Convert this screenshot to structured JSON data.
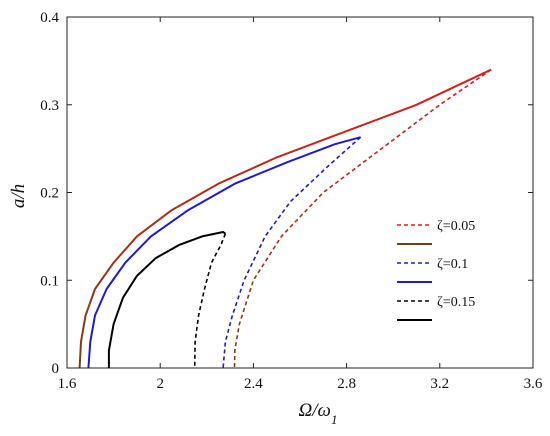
{
  "chart_data": {
    "type": "line",
    "xlabel_main": "Ω/ω",
    "xlabel_sub": "1",
    "ylabel": "a/h",
    "xlim": [
      1.6,
      3.6
    ],
    "ylim": [
      0,
      0.4
    ],
    "xticks": [
      "1.6",
      "2",
      "2.4",
      "2.8",
      "3.2",
      "3.6"
    ],
    "yticks": [
      "0",
      "0.1",
      "0.2",
      "0.3",
      "0.4"
    ],
    "grid": false,
    "legend_position": "right-middle",
    "legend": [
      {
        "label": "ζ=0.05",
        "color": "#e01a1a",
        "dashed": true
      },
      {
        "label": "",
        "color": "#7b3f12",
        "dashed": false
      },
      {
        "label": "ζ=0.1",
        "color": "#1a1adb",
        "dashed": true
      },
      {
        "label": "",
        "color": "#1a1adb",
        "dashed": false
      },
      {
        "label": "ζ=0.15",
        "color": "#000000",
        "dashed": true
      },
      {
        "label": "",
        "color": "#000000",
        "dashed": false
      }
    ],
    "series": [
      {
        "zeta": 0.05,
        "stable_color_low": "#7b3f12",
        "stable_color_high": "#e01a1a",
        "unstable_color_low": "#7b3f12",
        "unstable_color_high": "#e01a1a",
        "stable": [
          [
            1.654,
            0
          ],
          [
            1.66,
            0.03
          ],
          [
            1.68,
            0.06
          ],
          [
            1.72,
            0.09
          ],
          [
            1.8,
            0.12
          ],
          [
            1.9,
            0.15
          ],
          [
            2.05,
            0.18
          ],
          [
            2.25,
            0.21
          ],
          [
            2.5,
            0.24
          ],
          [
            2.8,
            0.27
          ],
          [
            3.1,
            0.3
          ],
          [
            3.3,
            0.325
          ],
          [
            3.42,
            0.34
          ]
        ],
        "unstable": [
          [
            3.42,
            0.34
          ],
          [
            3.2,
            0.3
          ],
          [
            2.95,
            0.25
          ],
          [
            2.7,
            0.2
          ],
          [
            2.52,
            0.15
          ],
          [
            2.4,
            0.1
          ],
          [
            2.34,
            0.05
          ],
          [
            2.32,
            0.02
          ],
          [
            2.319,
            0
          ]
        ]
      },
      {
        "zeta": 0.1,
        "stable_color_low": "#1a1adb",
        "stable_color_high": "#1a1adb",
        "unstable_color_low": "#1a1adb",
        "unstable_color_high": "#1a1adb",
        "stable": [
          [
            1.692,
            0
          ],
          [
            1.7,
            0.03
          ],
          [
            1.72,
            0.06
          ],
          [
            1.77,
            0.09
          ],
          [
            1.85,
            0.12
          ],
          [
            1.96,
            0.15
          ],
          [
            2.12,
            0.18
          ],
          [
            2.32,
            0.21
          ],
          [
            2.55,
            0.235
          ],
          [
            2.75,
            0.255
          ],
          [
            2.86,
            0.263
          ]
        ],
        "unstable": [
          [
            2.86,
            0.263
          ],
          [
            2.72,
            0.23
          ],
          [
            2.56,
            0.19
          ],
          [
            2.45,
            0.15
          ],
          [
            2.36,
            0.1
          ],
          [
            2.31,
            0.06
          ],
          [
            2.28,
            0.03
          ],
          [
            2.27,
            0
          ]
        ]
      },
      {
        "zeta": 0.15,
        "stable_color_low": "#000000",
        "stable_color_high": "#000000",
        "unstable_color_low": "#000000",
        "unstable_color_high": "#000000",
        "stable": [
          [
            1.78,
            0
          ],
          [
            1.78,
            0.02
          ],
          [
            1.8,
            0.05
          ],
          [
            1.84,
            0.08
          ],
          [
            1.9,
            0.105
          ],
          [
            1.98,
            0.125
          ],
          [
            2.08,
            0.14
          ],
          [
            2.18,
            0.15
          ],
          [
            2.27,
            0.155
          ],
          [
            2.28,
            0.153
          ]
        ],
        "unstable": [
          [
            2.28,
            0.153
          ],
          [
            2.26,
            0.14
          ],
          [
            2.22,
            0.12
          ],
          [
            2.19,
            0.09
          ],
          [
            2.165,
            0.06
          ],
          [
            2.15,
            0.03
          ],
          [
            2.148,
            0
          ]
        ]
      }
    ]
  }
}
